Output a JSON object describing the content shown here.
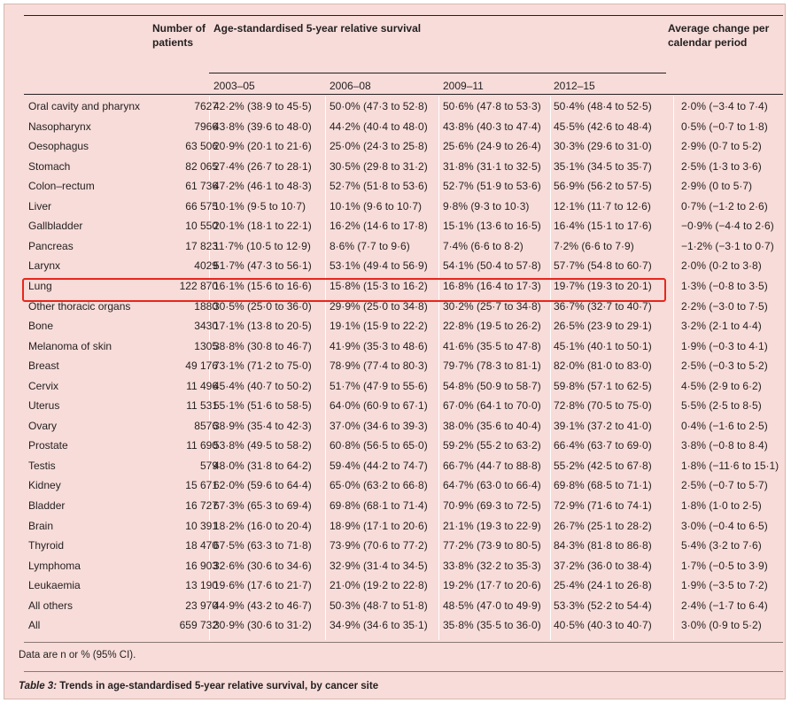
{
  "headers": {
    "patients": "Number of patients",
    "survival": "Age-standardised 5-year relative survival",
    "change": "Average change per calendar period",
    "periods": [
      "2003–05",
      "2006–08",
      "2009–11",
      "2012–15"
    ]
  },
  "rows": [
    {
      "site": "Oral cavity and pharynx",
      "n": "7627",
      "p1": "42·2% (38·9 to 45·5)",
      "p2": "50·0% (47·3 to 52·8)",
      "p3": "50·6% (47·8 to 53·3)",
      "p4": "50·4% (48·4 to 52·5)",
      "change": "2·0% (−3·4 to 7·4)"
    },
    {
      "site": "Nasopharynx",
      "n": "7966",
      "p1": "43·8% (39·6 to 48·0)",
      "p2": "44·2% (40·4 to 48·0)",
      "p3": "43·8% (40·3 to 47·4)",
      "p4": "45·5% (42·6 to 48·4)",
      "change": "0·5% (−0·7 to 1·8)"
    },
    {
      "site": "Oesophagus",
      "n": "63 506",
      "p1": "20·9% (20·1 to 21·6)",
      "p2": "25·0% (24·3 to 25·8)",
      "p3": "25·6% (24·9 to 26·4)",
      "p4": "30·3% (29·6 to 31·0)",
      "change": "2·9% (0·7 to 5·2)"
    },
    {
      "site": "Stomach",
      "n": "82 065",
      "p1": "27·4% (26·7 to 28·1)",
      "p2": "30·5% (29·8 to 31·2)",
      "p3": "31·8% (31·1 to 32·5)",
      "p4": "35·1% (34·5 to 35·7)",
      "change": "2·5% (1·3 to 3·6)"
    },
    {
      "site": "Colon–rectum",
      "n": "61 736",
      "p1": "47·2% (46·1 to 48·3)",
      "p2": "52·7% (51·8 to 53·6)",
      "p3": "52·7% (51·9 to 53·6)",
      "p4": "56·9% (56·2 to 57·5)",
      "change": "2·9% (0 to 5·7)"
    },
    {
      "site": "Liver",
      "n": "66 575",
      "p1": "10·1% (9·5 to 10·7)",
      "p2": "10·1% (9·6 to 10·7)",
      "p3": "9·8% (9·3 to 10·3)",
      "p4": "12·1% (11·7 to 12·6)",
      "change": "0·7% (−1·2 to 2·6)"
    },
    {
      "site": "Gallbladder",
      "n": "10 550",
      "p1": "20·1% (18·1 to 22·1)",
      "p2": "16·2% (14·6 to 17·8)",
      "p3": "15·1% (13·6 to 16·5)",
      "p4": "16·4% (15·1 to 17·6)",
      "change": "−0·9% (−4·4 to 2·6)"
    },
    {
      "site": "Pancreas",
      "n": "17 823",
      "p1": "11·7% (10·5 to 12·9)",
      "p2": "8·6% (7·7 to 9·6)",
      "p3": "7·4% (6·6 to 8·2)",
      "p4": "7·2% (6·6 to 7·9)",
      "change": "−1·2% (−3·1 to 0·7)"
    },
    {
      "site": "Larynx",
      "n": "4029",
      "p1": "51·7% (47·3 to 56·1)",
      "p2": "53·1% (49·4 to 56·9)",
      "p3": "54·1% (50·4 to 57·8)",
      "p4": "57·7% (54·8 to 60·7)",
      "change": "2·0% (0·2 to 3·8)"
    },
    {
      "site": "Lung",
      "n": "122 870",
      "p1": "16·1% (15·6 to 16·6)",
      "p2": "15·8% (15·3 to 16·2)",
      "p3": "16·8% (16·4 to 17·3)",
      "p4": "19·7% (19·3 to 20·1)",
      "change": "1·3% (−0·8 to 3·5)"
    },
    {
      "site": "Other thoracic organs",
      "n": "1880",
      "p1": "30·5% (25·0 to 36·0)",
      "p2": "29·9% (25·0 to 34·8)",
      "p3": "30·2% (25·7 to 34·8)",
      "p4": "36·7% (32·7 to 40·7)",
      "change": "2·2% (−3·0 to 7·5)"
    },
    {
      "site": "Bone",
      "n": "3430",
      "p1": "17·1% (13·8 to 20·5)",
      "p2": "19·1% (15·9 to 22·2)",
      "p3": "22·8% (19·5 to 26·2)",
      "p4": "26·5% (23·9 to 29·1)",
      "change": "3·2% (2·1 to 4·4)"
    },
    {
      "site": "Melanoma of skin",
      "n": "1305",
      "p1": "38·8% (30·8 to 46·7)",
      "p2": "41·9% (35·3 to 48·6)",
      "p3": "41·6% (35·5 to 47·8)",
      "p4": "45·1% (40·1 to 50·1)",
      "change": "1·9% (−0·3 to 4·1)"
    },
    {
      "site": "Breast",
      "n": "49 176",
      "p1": "73·1% (71·2 to 75·0)",
      "p2": "78·9% (77·4 to 80·3)",
      "p3": "79·7% (78·3 to 81·1)",
      "p4": "82·0% (81·0 to 83·0)",
      "change": "2·5% (−0·3 to 5·2)"
    },
    {
      "site": "Cervix",
      "n": "11 496",
      "p1": "45·4% (40·7 to 50·2)",
      "p2": "51·7% (47·9 to 55·6)",
      "p3": "54·8% (50·9 to 58·7)",
      "p4": "59·8% (57·1 to 62·5)",
      "change": "4·5% (2·9 to 6·2)"
    },
    {
      "site": "Uterus",
      "n": "11 531",
      "p1": "55·1% (51·6 to 58·5)",
      "p2": "64·0% (60·9 to 67·1)",
      "p3": "67·0% (64·1 to 70·0)",
      "p4": "72·8% (70·5 to 75·0)",
      "change": "5·5% (2·5 to 8·5)"
    },
    {
      "site": "Ovary",
      "n": "8576",
      "p1": "38·9% (35·4 to 42·3)",
      "p2": "37·0% (34·6 to 39·3)",
      "p3": "38·0% (35·6 to 40·4)",
      "p4": "39·1% (37·2 to 41·0)",
      "change": "0·4% (−1·6 to 2·5)"
    },
    {
      "site": "Prostate",
      "n": "11 690",
      "p1": "53·8% (49·5 to 58·2)",
      "p2": "60·8% (56·5 to 65·0)",
      "p3": "59·2% (55·2 to 63·2)",
      "p4": "66·4% (63·7 to 69·0)",
      "change": "3·8% (−0·8 to 8·4)"
    },
    {
      "site": "Testis",
      "n": "579",
      "p1": "48·0% (31·8 to 64·2)",
      "p2": "59·4% (44·2 to 74·7)",
      "p3": "66·7% (44·7 to 88·8)",
      "p4": "55·2% (42·5 to 67·8)",
      "change": "1·8% (−11·6 to 15·1)"
    },
    {
      "site": "Kidney",
      "n": "15 671",
      "p1": "62·0% (59·6 to 64·4)",
      "p2": "65·0% (63·2 to 66·8)",
      "p3": "64·7% (63·0 to 66·4)",
      "p4": "69·8% (68·5 to 71·1)",
      "change": "2·5% (−0·7 to 5·7)"
    },
    {
      "site": "Bladder",
      "n": "16 727",
      "p1": "67·3% (65·3 to 69·4)",
      "p2": "69·8% (68·1 to 71·4)",
      "p3": "70·9% (69·3 to 72·5)",
      "p4": "72·9% (71·6 to 74·1)",
      "change": "1·8% (1·0 to 2·5)"
    },
    {
      "site": "Brain",
      "n": "10 391",
      "p1": "18·2% (16·0 to 20·4)",
      "p2": "18·9% (17·1 to 20·6)",
      "p3": "21·1% (19·3 to 22·9)",
      "p4": "26·7% (25·1 to 28·2)",
      "change": "3·0% (−0·4 to 6·5)"
    },
    {
      "site": "Thyroid",
      "n": "18 470",
      "p1": "67·5% (63·3 to 71·8)",
      "p2": "73·9% (70·6 to 77·2)",
      "p3": "77·2% (73·9 to 80·5)",
      "p4": "84·3% (81·8 to 86·8)",
      "change": "5·4% (3·2 to 7·6)"
    },
    {
      "site": "Lymphoma",
      "n": "16 903",
      "p1": "32·6% (30·6 to 34·6)",
      "p2": "32·9% (31·4 to 34·5)",
      "p3": "33·8% (32·2 to 35·3)",
      "p4": "37·2% (36·0 to 38·4)",
      "change": "1·7% (−0·5 to 3·9)"
    },
    {
      "site": "Leukaemia",
      "n": "13 190",
      "p1": "19·6% (17·6 to 21·7)",
      "p2": "21·0% (19·2 to 22·8)",
      "p3": "19·2% (17·7 to 20·6)",
      "p4": "25·4% (24·1 to 26·8)",
      "change": "1·9% (−3·5 to 7·2)"
    },
    {
      "site": "All others",
      "n": "23 970",
      "p1": "44·9% (43·2 to 46·7)",
      "p2": "50·3% (48·7 to 51·8)",
      "p3": "48·5% (47·0 to 49·9)",
      "p4": "53·3% (52·2 to 54·4)",
      "change": "2·4% (−1·7 to 6·4)"
    },
    {
      "site": "All",
      "n": "659 732",
      "p1": "30·9% (30·6 to 31·2)",
      "p2": "34·9% (34·6 to 35·1)",
      "p3": "35·8% (35·5 to 36·0)",
      "p4": "40·5% (40·3 to 40·7)",
      "change": "3·0% (0·9 to 5·2)"
    }
  ],
  "highlighted_row": "Lung",
  "colors": {
    "background": "#f7dcd9",
    "highlight": "#e8261c"
  },
  "footnote": "Data are n or % (95% CI).",
  "caption": {
    "label": "Table 3:",
    "text": " Trends in age-standardised 5-year relative survival, by cancer site"
  }
}
